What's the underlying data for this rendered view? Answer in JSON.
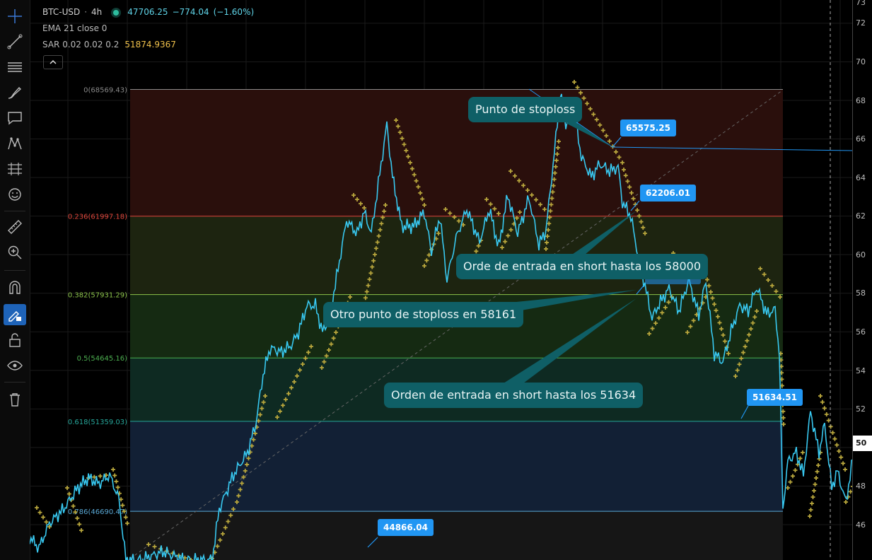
{
  "legend": {
    "symbol": "BTC-USD",
    "interval": "4h",
    "price": "47706.25",
    "change": "−774.04",
    "change_pct": "(−1.60%)",
    "ema_label": "EMA 21 close 0",
    "sar_label": "SAR 0.02 0.02 0.2",
    "sar_value": "51874.9367"
  },
  "colors": {
    "price_line": "#38c8f0",
    "sar_dots": "#b8a63c",
    "label_bg": "#2196f3",
    "callout_bg": "#0f5f66",
    "legend_up": "#5fd4e8",
    "sar_value": "#f0c14b"
  },
  "toolbar": [
    {
      "icon": "crosshair-icon"
    },
    {
      "icon": "trend-line-icon"
    },
    {
      "icon": "horizontal-lines-icon"
    },
    {
      "icon": "brush-icon"
    },
    {
      "icon": "text-note-icon"
    },
    {
      "icon": "pattern-icon"
    },
    {
      "icon": "prediction-icon"
    },
    {
      "icon": "emoji-icon"
    },
    {
      "icon": "ruler-icon"
    },
    {
      "icon": "zoom-in-icon"
    },
    {
      "icon": "magnet-icon"
    },
    {
      "icon": "stay-in-drawing-mode-icon"
    },
    {
      "icon": "lock-icon"
    },
    {
      "icon": "eye-icon"
    },
    {
      "icon": "trash-icon"
    }
  ],
  "price_axis": {
    "ticks": [
      "73",
      "72",
      "70",
      "68",
      "66",
      "64",
      "62",
      "60",
      "58",
      "56",
      "54",
      "52",
      "50",
      "48",
      "46"
    ],
    "current_badge": "50"
  },
  "fib_levels": [
    {
      "label": "0(68569.43)",
      "price": 68569.43,
      "color": "#8a8a8a"
    },
    {
      "label": "0.236(61997.18)",
      "price": 61997.18,
      "color": "#e0473c"
    },
    {
      "label": "0.382(57931.29)",
      "price": 57931.29,
      "color": "#8bc34a"
    },
    {
      "label": "0.5(54645.16)",
      "price": 54645.16,
      "color": "#4caf50"
    },
    {
      "label": "0.618(51359.03)",
      "price": 51359.03,
      "color": "#26a69a"
    },
    {
      "label": "0.786(46690.47)",
      "price": 46690.47,
      "color": "#5aa9d6"
    }
  ],
  "price_labels": [
    {
      "text": "65575.25",
      "price": 65575.25
    },
    {
      "text": "62206.01",
      "price": 62206.01
    },
    {
      "text": "57939.51",
      "price": 57939.51
    },
    {
      "text": "51634.51",
      "price": 51634.51
    },
    {
      "text": "44866.04",
      "price": 44866.04
    }
  ],
  "callouts": [
    "Punto de stoploss",
    "Orde de entrada en short hasta los 58000",
    "Otro punto de stoploss en 58161",
    "Orden de entrada en short hasta los 51634"
  ]
}
